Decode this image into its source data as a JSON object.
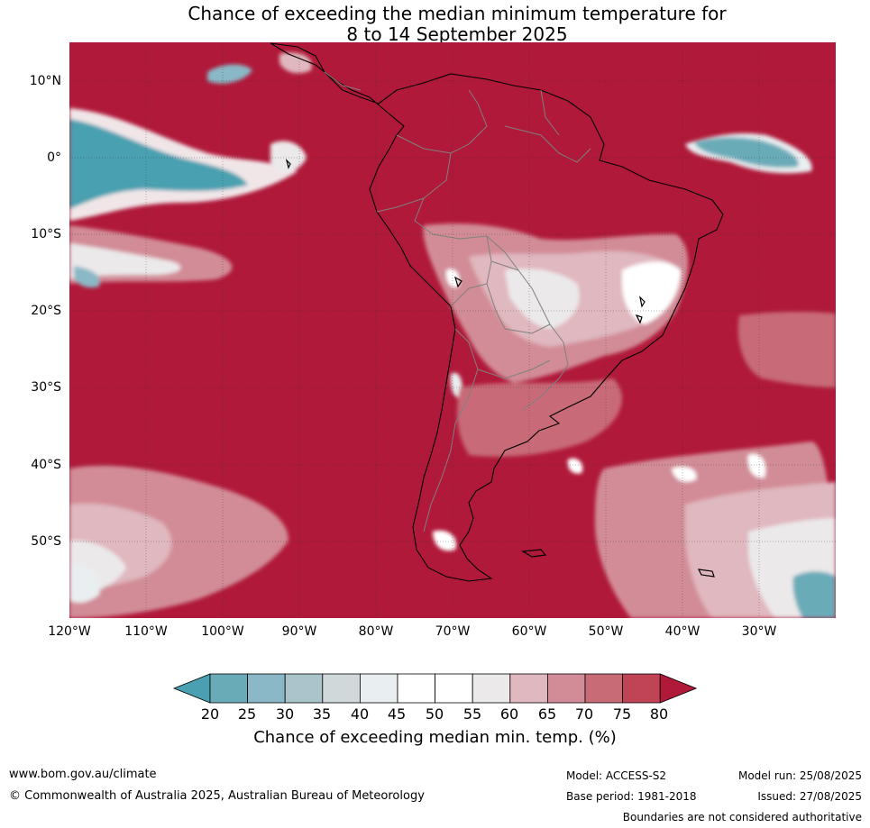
{
  "title": {
    "line1": "Chance of exceeding the median minimum temperature for",
    "line2": "8 to 14 September 2025"
  },
  "map": {
    "latitude_labels": [
      "10°N",
      "0°",
      "10°S",
      "20°S",
      "30°S",
      "40°S",
      "50°S"
    ],
    "longitude_labels": [
      "120°W",
      "110°W",
      "100°W",
      "90°W",
      "80°W",
      "70°W",
      "60°W",
      "50°W",
      "40°W",
      "30°W"
    ],
    "extent": {
      "lon_min": -120,
      "lon_max": -20,
      "lat_min": -60,
      "lat_max": 15
    },
    "colors": {
      "dominant": "#b0193a",
      "land_lines": "#000000",
      "border_lines": "#808080"
    }
  },
  "colorbar": {
    "ticks": [
      "20",
      "25",
      "30",
      "35",
      "40",
      "45",
      "50",
      "55",
      "60",
      "65",
      "70",
      "75",
      "80"
    ],
    "colors": [
      "#4aa0b0",
      "#6aabb8",
      "#8ab8c6",
      "#a9c4cb",
      "#d0d8da",
      "#e9eef0",
      "#ffffff",
      "#ffffff",
      "#ebe9ea",
      "#e0b8bf",
      "#d28c97",
      "#c86b77",
      "#c04456",
      "#b0193a"
    ],
    "label": "Chance of exceeding median min. temp. (%)"
  },
  "footer": {
    "website": "www.bom.gov.au/climate",
    "copyright": "© Commonwealth of Australia 2025, Australian Bureau of Meteorology",
    "model": "Model: ACCESS-S2",
    "model_run": "Model run: 25/08/2025",
    "base_period": "Base period: 1981-2018",
    "issued": "Issued: 27/08/2025",
    "disclaimer": "Boundaries are not considered authoritative"
  }
}
